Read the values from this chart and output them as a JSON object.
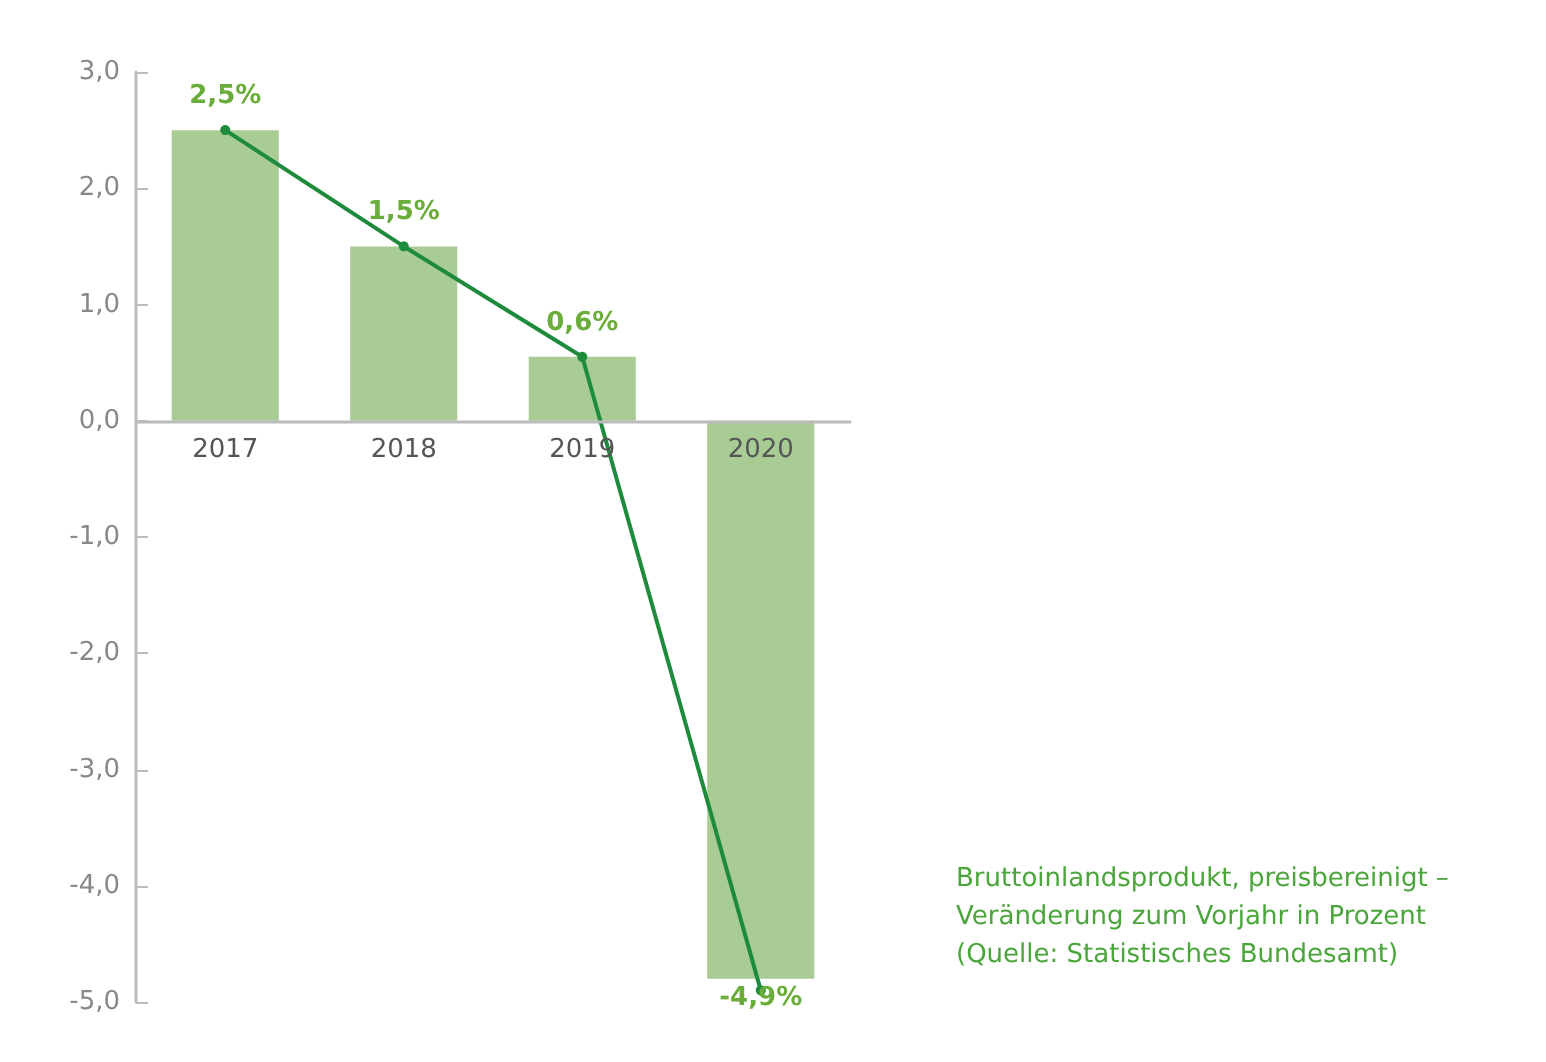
{
  "chart_data": {
    "type": "bar",
    "categories": [
      "2017",
      "2018",
      "2019",
      "2020"
    ],
    "series": [
      {
        "color": "#a9cc94",
        "values": [
          2.5,
          1.5,
          0.55,
          -4.8
        ]
      },
      {
        "type": "line",
        "color": "#1e8a3c",
        "values": [
          2.5,
          1.5,
          0.55,
          -4.9
        ],
        "value_labels": [
          "2,5%",
          "1,5%",
          "0,6%",
          "-4,9%"
        ]
      }
    ],
    "ylim": [
      -5,
      3
    ],
    "yticks": [
      {
        "value": -5,
        "label": "-5,0"
      },
      {
        "value": -4,
        "label": "-4,0"
      },
      {
        "value": -3,
        "label": "-3,0"
      },
      {
        "value": -2,
        "label": "-2,0"
      },
      {
        "value": -1,
        "label": "-1,0"
      },
      {
        "value": 0,
        "label": "0,0"
      },
      {
        "value": 1,
        "label": "1,0"
      },
      {
        "value": 2,
        "label": "2,0"
      },
      {
        "value": 3,
        "label": "3,0"
      }
    ],
    "marker": "circle",
    "line_style": "solid",
    "annotations": [
      "Bruttoinlandsprodukt, preisbereinigt –\nVeränderung zum Vorjahr in Prozent\n(Quelle: Statistisches Bundesamt)"
    ]
  }
}
